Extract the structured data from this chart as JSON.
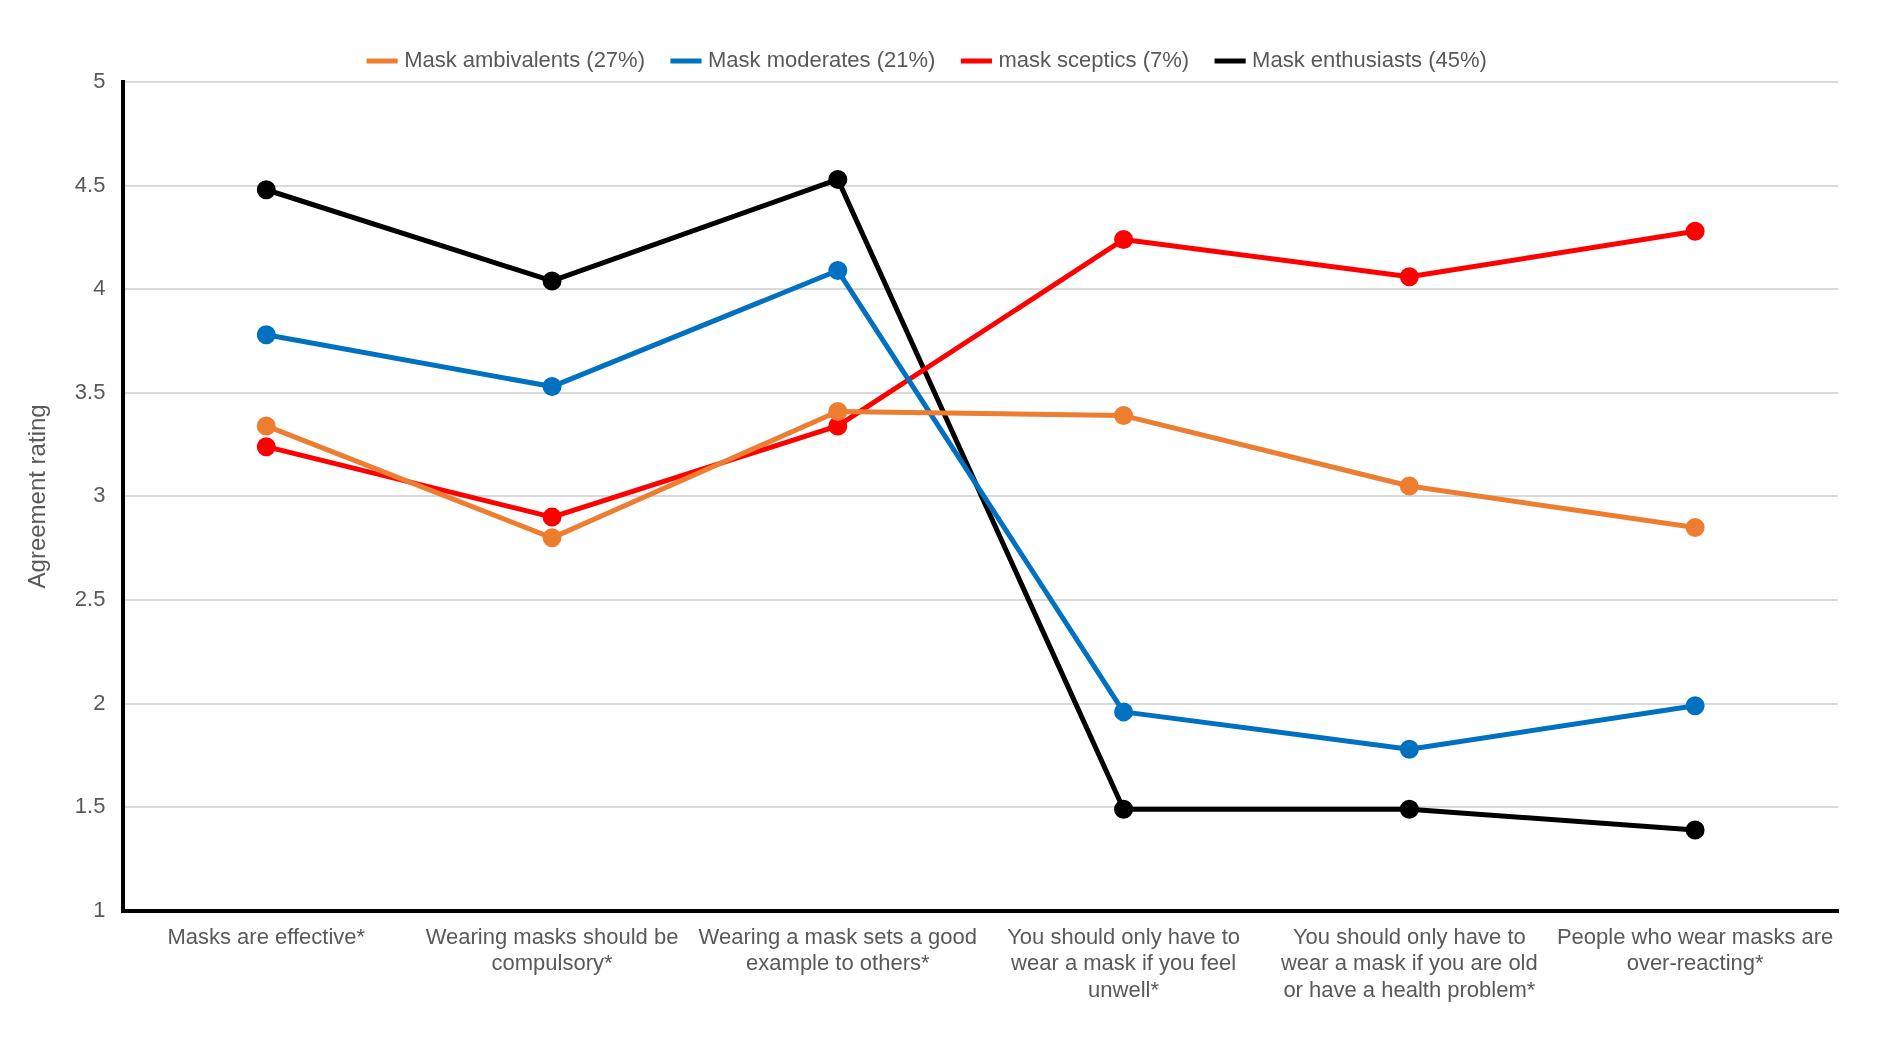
{
  "chart_data": {
    "type": "line",
    "ylabel": "Agreement rating",
    "categories": [
      "Masks are effective*",
      "Wearing masks should be compulsory*",
      "Wearing a mask sets a good example to others*",
      "You should only have to wear a mask if you feel unwell*",
      "You should only have to wear a mask if you are old or have a health problem*",
      "People who wear masks are over-reacting*"
    ],
    "series": [
      {
        "name": "Mask ambivalents (27%)",
        "color": "#ed7d31",
        "values": [
          3.34,
          2.8,
          3.41,
          3.39,
          3.05,
          2.85
        ]
      },
      {
        "name": "Mask moderates (21%)",
        "color": "#0070c0",
        "values": [
          3.78,
          3.53,
          4.09,
          1.96,
          1.78,
          1.99
        ]
      },
      {
        "name": "mask sceptics (7%)",
        "color": "#ff0000",
        "values": [
          3.24,
          2.9,
          3.34,
          4.24,
          4.06,
          4.28
        ]
      },
      {
        "name": "Mask enthusiasts (45%)",
        "color": "#000000",
        "values": [
          4.48,
          4.04,
          4.53,
          1.49,
          1.49,
          1.39
        ]
      }
    ],
    "ylim": [
      1,
      5
    ],
    "yticks": [
      1,
      1.5,
      2,
      2.5,
      3,
      3.5,
      4,
      4.5,
      5
    ],
    "grid": "y",
    "legend": "top",
    "marker": "circle",
    "line_style": "solid"
  }
}
